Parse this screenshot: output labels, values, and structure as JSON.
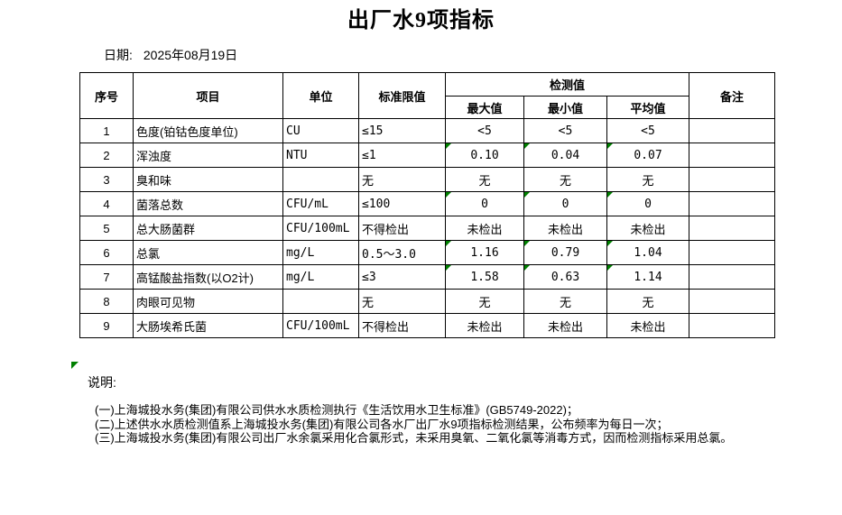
{
  "title": "出厂水9项指标",
  "date": {
    "label": "日期:",
    "value": "2025年08月19日"
  },
  "table": {
    "headers": {
      "seq": "序号",
      "item": "项目",
      "unit": "单位",
      "limit": "标准限值",
      "detection": "检测值",
      "max": "最大值",
      "min": "最小值",
      "avg": "平均值",
      "remark": "备注"
    },
    "rows": [
      {
        "seq": "1",
        "item": "色度(铂钴色度单位)",
        "unit": "CU",
        "limit": "≤15",
        "max": "<5",
        "min": "<5",
        "avg": "<5",
        "remark": "",
        "flag": false
      },
      {
        "seq": "2",
        "item": "浑浊度",
        "unit": "NTU",
        "limit": "≤1",
        "max": "0.10",
        "min": "0.04",
        "avg": "0.07",
        "remark": "",
        "flag": true
      },
      {
        "seq": "3",
        "item": "臭和味",
        "unit": "",
        "limit": "无",
        "max": "无",
        "min": "无",
        "avg": "无",
        "remark": "",
        "flag": false
      },
      {
        "seq": "4",
        "item": "菌落总数",
        "unit": "CFU/mL",
        "limit": "≤100",
        "max": "0",
        "min": "0",
        "avg": "0",
        "remark": "",
        "flag": true
      },
      {
        "seq": "5",
        "item": "总大肠菌群",
        "unit": "CFU/100mL",
        "limit": "不得检出",
        "max": "未检出",
        "min": "未检出",
        "avg": "未检出",
        "remark": "",
        "flag": false
      },
      {
        "seq": "6",
        "item": "总氯",
        "unit": "mg/L",
        "limit": "0.5～3.0",
        "max": "1.16",
        "min": "0.79",
        "avg": "1.04",
        "remark": "",
        "flag": true
      },
      {
        "seq": "7",
        "item": "高锰酸盐指数(以O2计)",
        "unit": "mg/L",
        "limit": "≤3",
        "max": "1.58",
        "min": "0.63",
        "avg": "1.14",
        "remark": "",
        "flag": true
      },
      {
        "seq": "8",
        "item": "肉眼可见物",
        "unit": "",
        "limit": "无",
        "max": "无",
        "min": "无",
        "avg": "无",
        "remark": "",
        "flag": false
      },
      {
        "seq": "9",
        "item": "大肠埃希氏菌",
        "unit": "CFU/100mL",
        "limit": "不得检出",
        "max": "未检出",
        "min": "未检出",
        "avg": "未检出",
        "remark": "",
        "flag": false
      }
    ]
  },
  "notes": {
    "label": "说明:",
    "items": [
      "(一)上海城投水务(集团)有限公司供水水质检测执行《生活饮用水卫生标准》(GB5749-2022)；",
      "(二)上述供水水质检测值系上海城投水务(集团)有限公司各水厂出厂水9项指标检测结果，公布频率为每日一次；",
      "(三)上海城投水务(集团)有限公司出厂水余氯采用化合氯形式，未采用臭氧、二氧化氯等消毒方式，因而检测指标采用总氯。"
    ]
  },
  "colors": {
    "flag_green": "#008000",
    "border": "#000000",
    "text": "#000000",
    "background": "#ffffff"
  }
}
